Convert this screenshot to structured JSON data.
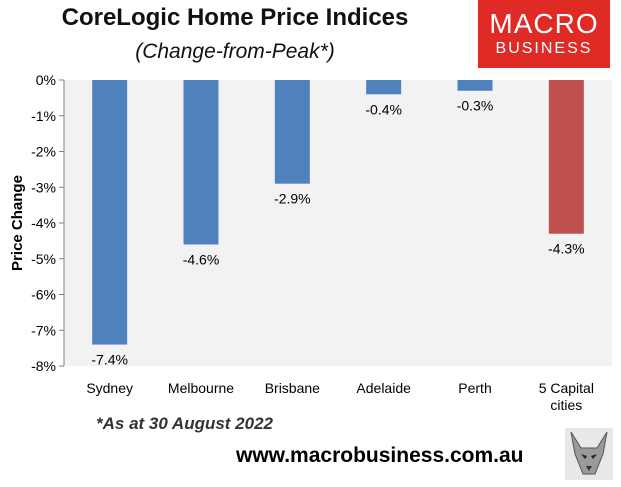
{
  "title": "CoreLogic Home Price Indices",
  "subtitle": "(Change-from-Peak*)",
  "logo": {
    "line1": "MACRO",
    "line2": "BUSINESS",
    "color": "#e02a26"
  },
  "note": "*As at 30 August 2022",
  "website": "www.macrobusiness.com.au",
  "chart_data": {
    "type": "bar",
    "ylabel": "Price Change",
    "ylim": [
      -8,
      0
    ],
    "yticks": [
      0,
      -1,
      -2,
      -3,
      -4,
      -5,
      -6,
      -7,
      -8
    ],
    "ytick_labels": [
      "0%",
      "-1%",
      "-2%",
      "-3%",
      "-4%",
      "-5%",
      "-6%",
      "-7%",
      "-8%"
    ],
    "categories": [
      [
        "Sydney"
      ],
      [
        "Melbourne"
      ],
      [
        "Brisbane"
      ],
      [
        "Adelaide"
      ],
      [
        "Perth"
      ],
      [
        "5 Capital",
        "cities"
      ]
    ],
    "values": [
      -7.4,
      -4.6,
      -2.9,
      -0.4,
      -0.3,
      -4.3
    ],
    "data_labels": [
      "-7.4%",
      "-4.6%",
      "-2.9%",
      "-0.4%",
      "-0.3%",
      "-4.3%"
    ],
    "colors": [
      "#4f81bd",
      "#4f81bd",
      "#4f81bd",
      "#4f81bd",
      "#4f81bd",
      "#c0504d"
    ],
    "plot_background": "#f2f2f2",
    "grid": false,
    "legend": "none"
  }
}
